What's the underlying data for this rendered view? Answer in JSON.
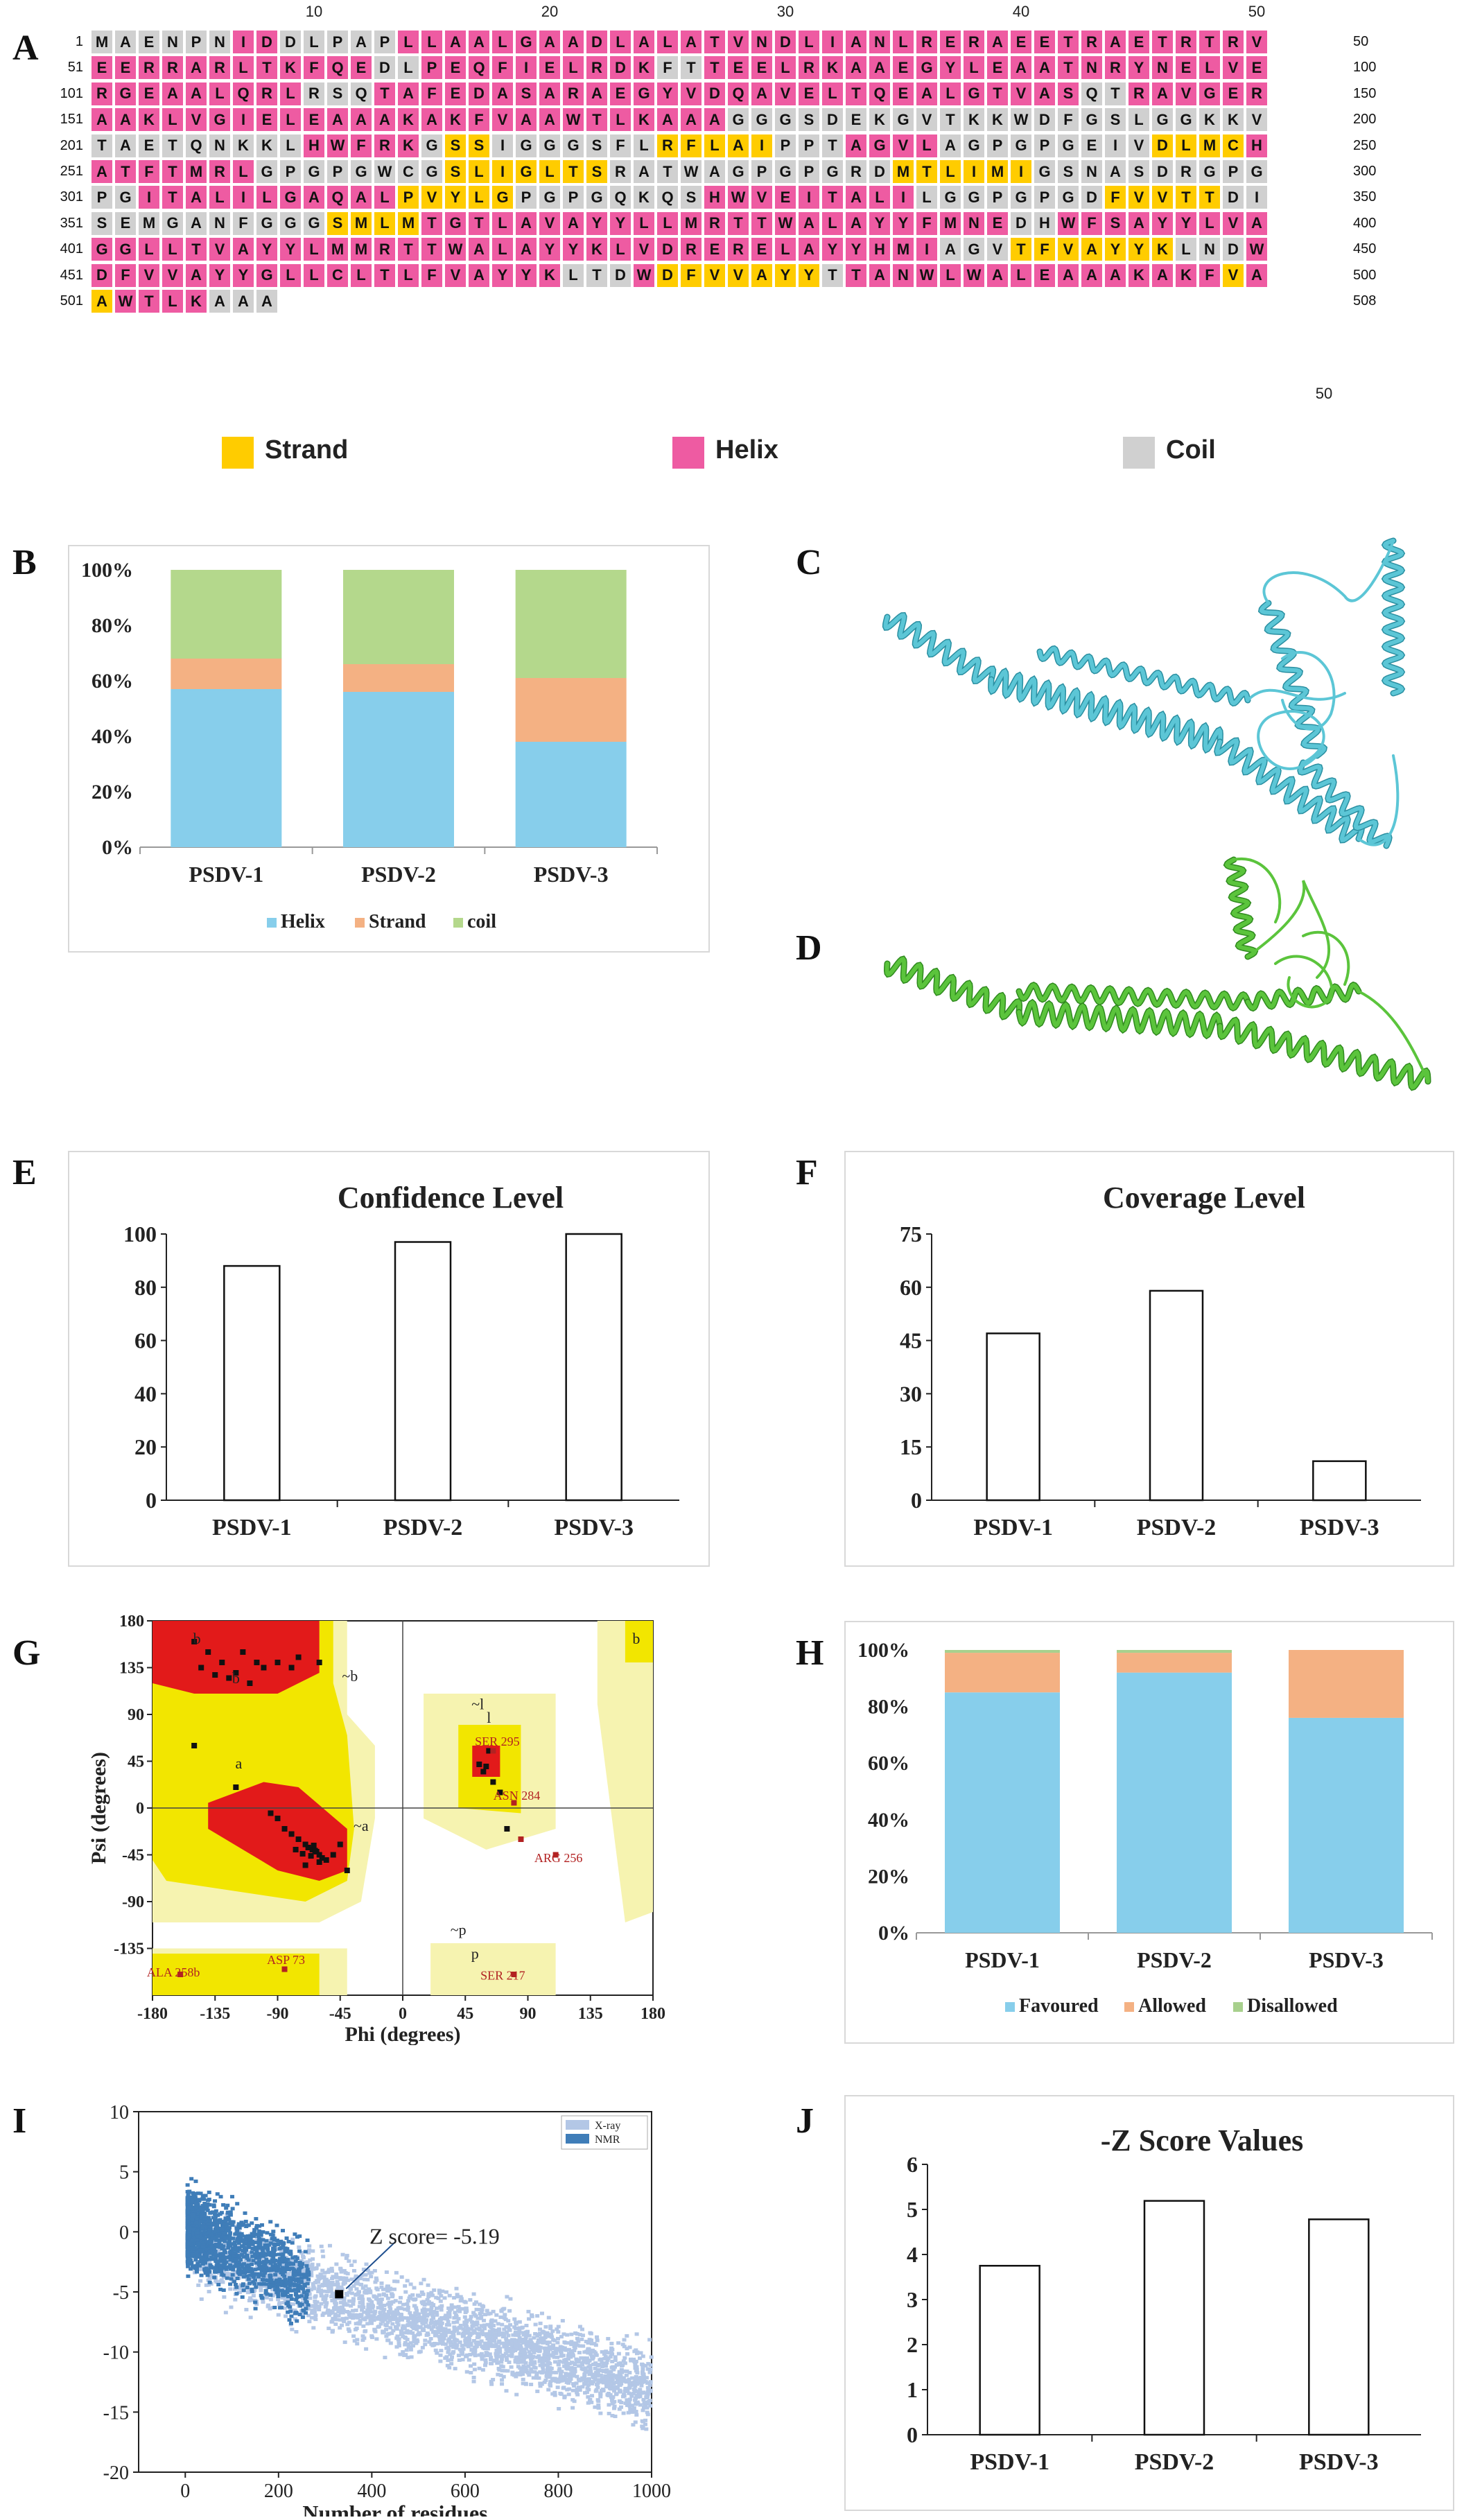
{
  "panel_labels": [
    "A",
    "B",
    "C",
    "D",
    "E",
    "F",
    "G",
    "H",
    "I",
    "J"
  ],
  "panelA": {
    "top_ticks": [
      "10",
      "20",
      "30",
      "40",
      "50"
    ],
    "bottom_tick": "50",
    "rows": [
      {
        "start": "1",
        "end": "50",
        "seq": "MAENPNIDDLPAPLLAALGAADLALATVNDLIANLRERAEETRAETRTRV",
        "ss": "CCCCCCHHCCCCCHHHHHHHHHHHHHHHHHHHHHHHHHHHHHHHHHHHHH"
      },
      {
        "start": "51",
        "end": "100",
        "seq": "EERRARLTKFQEDLPEQFIELRDKFTTEELRKAAEGYLEAATNRYNELVE",
        "ss": "HHHHHHHHHHHHCCHHHHHHHHHHCCHHHHHHHHHHHHHHHHHHHHHHHH"
      },
      {
        "start": "101",
        "end": "150",
        "seq": "RGEAALQRLRSQTAFEDASARAEGYVDQAVELTQEALGTVASQTRAVGER",
        "ss": "HHHHHHHHHCCCHHHHHHHHHHHHHHHHHHHHHHHHHHHHHHCCHHHHHH"
      },
      {
        "start": "151",
        "end": "200",
        "seq": "AAKLVGIELEAAAKAKFVAAWTLKAAAGGGSDEKGVTKKWDFGSLGGKKV",
        "ss": "HHHHHHHHHHHHHHHHHHHHHHHHHHHCCCCCCCCCCCCCCCCCCCCCCC"
      },
      {
        "start": "201",
        "end": "250",
        "seq": "TAETQNKKLHWFRKGSSIGGGSFLRFLAIPPTAGVLAGPGPGEIVDLMCH",
        "ss": "CCCCCCCCCHHHHHCSSCCCCCCCSSSSSCCCHHHHCCCCCCCCCSSSSH"
      },
      {
        "start": "251",
        "end": "300",
        "seq": "ATFTMRLGPGPGWCGSLIGLTSRATWAGPGPGRDMTLIMIGSNASDRGPG",
        "ss": "HHHHHHHCCCCCCCCSSSSSSSCCCCCCCCCCCCSSSSSSCCCCCCCCCC"
      },
      {
        "start": "301",
        "end": "350",
        "seq": "PGITALILGAQALPVYLGPGPGQKQSHWVEITALILGGPGPGDFVVTTDI",
        "ss": "CCHHHHHHHHHHHSSSSSCCCCCCCCHHHHHHHHHCCCCCCCCSSSSSCC"
      },
      {
        "start": "351",
        "end": "400",
        "seq": "SEMGANFGGGSMLMTGTLAVAYYLLMRTTWALAYYFMNEDHWFSAYYLVA",
        "ss": "CCCCCCCCCCSSSSHHHHHHHHHHHHHHHHHHHHHHHHHCCHHHHHHHHH"
      },
      {
        "start": "401",
        "end": "450",
        "seq": "GGLLTVAYYLMMRTTWALAYYKLVDRERELAYYHMIAGVTFVAYYKLNDW",
        "ss": "HHHHHHHHHHHHHHHHHHHHHHHHHHHHHHHHHHHHCCCSSSSSSSCCCH"
      },
      {
        "start": "451",
        "end": "500",
        "seq": "DFVVAYYGLLCLTLFVAYYKLTDWDFVVAYYTTANWLWALEAAAKAKFVA",
        "ss": "HHHHHHHHHHHHHHHHHHHHCCCHSSSSSSSCHHHHHHHHHHHHHHHHSH"
      },
      {
        "start": "501",
        "end": "508",
        "seq": "AWTLKAAA",
        "ss": "SHHHHCCC"
      }
    ],
    "legend": [
      {
        "label": "Strand",
        "color": "#FFCC00"
      },
      {
        "label": "Helix",
        "color": "#EE5BA2"
      },
      {
        "label": "Coil",
        "color": "#D0D0D0"
      }
    ]
  },
  "chart_data": [
    {
      "id": "B",
      "type": "bar",
      "stacked": true,
      "categories": [
        "PSDV-1",
        "PSDV-2",
        "PSDV-3"
      ],
      "series": [
        {
          "name": "Helix",
          "values": [
            57,
            56,
            38
          ],
          "color": "#87CEEB"
        },
        {
          "name": "Strand",
          "values": [
            11,
            10,
            23
          ],
          "color": "#F4B183"
        },
        {
          "name": "coil",
          "values": [
            32,
            34,
            39
          ],
          "color": "#B4D88C"
        }
      ],
      "yticks": [
        "0%",
        "20%",
        "40%",
        "60%",
        "80%",
        "100%"
      ],
      "ylim": [
        0,
        100
      ]
    },
    {
      "id": "E",
      "type": "bar",
      "title": "Confidence Level",
      "categories": [
        "PSDV-1",
        "PSDV-2",
        "PSDV-3"
      ],
      "values": [
        88,
        97,
        100
      ],
      "yticks": [
        "0",
        "20",
        "40",
        "60",
        "80",
        "100"
      ],
      "ylim": [
        0,
        100
      ]
    },
    {
      "id": "F",
      "type": "bar",
      "title": "Coverage Level",
      "categories": [
        "PSDV-1",
        "PSDV-2",
        "PSDV-3"
      ],
      "values": [
        47,
        59,
        11
      ],
      "yticks": [
        "0",
        "15",
        "30",
        "45",
        "60",
        "75"
      ],
      "ylim": [
        0,
        75
      ]
    },
    {
      "id": "G",
      "type": "scatter",
      "title": "",
      "xlabel": "Phi (degrees)",
      "ylabel": "Psi (degrees)",
      "xticks": [
        "-180",
        "-135",
        "-90",
        "-45",
        "0",
        "45",
        "90",
        "135",
        "180"
      ],
      "yticks": [
        "180",
        "135",
        "90",
        "45",
        "0",
        "-45",
        "-90",
        "-135"
      ],
      "xlim": [
        -180,
        180
      ],
      "ylim": [
        -180,
        180
      ],
      "region_labels": [
        "b",
        "b",
        "a",
        "l",
        "~b",
        "~a",
        "~l",
        "~p",
        "p",
        "b"
      ],
      "annotations": [
        "SER 295",
        "ASN 284",
        "ARG 256",
        "ASP 73",
        "ALA 258b",
        "SER 217"
      ],
      "points": [
        [
          -65,
          -40
        ],
        [
          -60,
          -45
        ],
        [
          -70,
          -35
        ],
        [
          -62,
          -42
        ],
        [
          -58,
          -48
        ],
        [
          -75,
          -30
        ],
        [
          -68,
          -38
        ],
        [
          -55,
          -50
        ],
        [
          -72,
          -44
        ],
        [
          -64,
          -36
        ],
        [
          -80,
          -25
        ],
        [
          -66,
          -46
        ],
        [
          -60,
          -52
        ],
        [
          -77,
          -40
        ],
        [
          -85,
          -20
        ],
        [
          -90,
          -10
        ],
        [
          -95,
          -5
        ],
        [
          -70,
          -55
        ],
        [
          -50,
          -45
        ],
        [
          -63,
          -41
        ],
        [
          -120,
          130
        ],
        [
          -130,
          140
        ],
        [
          -110,
          120
        ],
        [
          -140,
          150
        ],
        [
          -100,
          135
        ],
        [
          -90,
          140
        ],
        [
          -125,
          125
        ],
        [
          -150,
          160
        ],
        [
          -115,
          150
        ],
        [
          -135,
          128
        ],
        [
          -80,
          135
        ],
        [
          -145,
          135
        ],
        [
          -60,
          140
        ],
        [
          -105,
          140
        ],
        [
          -75,
          145
        ],
        [
          58,
          35
        ],
        [
          55,
          42
        ],
        [
          65,
          25
        ],
        [
          60,
          40
        ],
        [
          -150,
          60
        ],
        [
          -120,
          20
        ],
        [
          -40,
          -60
        ],
        [
          -45,
          -35
        ],
        [
          70,
          15
        ],
        [
          75,
          -20
        ],
        [
          62,
          55
        ]
      ],
      "labeled_points": [
        [
          65,
          55
        ],
        [
          80,
          5
        ],
        [
          85,
          -30
        ],
        [
          110,
          -45
        ],
        [
          -85,
          -155
        ],
        [
          -160,
          -160
        ],
        [
          80,
          -160
        ]
      ]
    },
    {
      "id": "H",
      "type": "bar",
      "stacked": true,
      "categories": [
        "PSDV-1",
        "PSDV-2",
        "PSDV-3"
      ],
      "series": [
        {
          "name": "Favoured",
          "values": [
            85,
            92,
            76
          ],
          "color": "#87CEEB"
        },
        {
          "name": "Allowed",
          "values": [
            14,
            7,
            24
          ],
          "color": "#F4B183"
        },
        {
          "name": "Disallowed",
          "values": [
            1,
            1,
            0
          ],
          "color": "#A8D08D"
        }
      ],
      "yticks": [
        "0%",
        "20%",
        "40%",
        "60%",
        "80%",
        "100%"
      ],
      "ylim": [
        0,
        100
      ]
    },
    {
      "id": "I",
      "type": "scatter",
      "xlabel": "Number of residues",
      "xticks": [
        "0",
        "200",
        "400",
        "600",
        "800",
        "1000"
      ],
      "yticks": [
        "10",
        "5",
        "0",
        "-5",
        "-10",
        "-15",
        "-20"
      ],
      "xlim": [
        -100,
        1000
      ],
      "ylim": [
        -20,
        10
      ],
      "legend": [
        "X-ray",
        "NMR"
      ],
      "annotation": "Z score= -5.19",
      "highlight": [
        330,
        -5.19
      ]
    },
    {
      "id": "J",
      "type": "bar",
      "title": "-Z Score Values",
      "categories": [
        "PSDV-1",
        "PSDV-2",
        "PSDV-3"
      ],
      "values": [
        3.75,
        5.19,
        4.78
      ],
      "yticks": [
        "0",
        "1",
        "2",
        "3",
        "4",
        "5",
        "6"
      ],
      "ylim": [
        0,
        6
      ]
    }
  ]
}
